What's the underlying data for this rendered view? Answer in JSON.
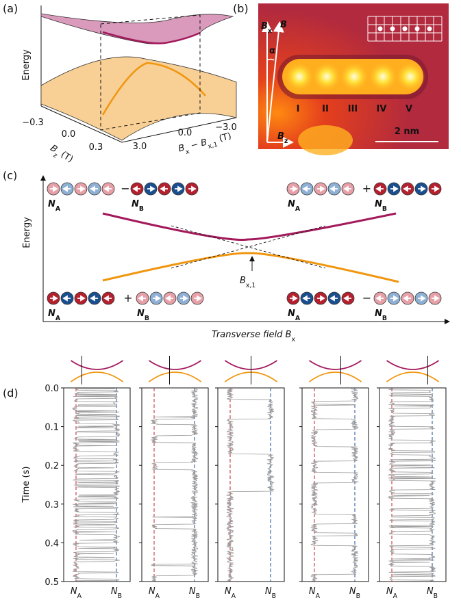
{
  "panels": {
    "a": {
      "label": "(a)",
      "z_label": "Energy",
      "bz_ticks": [
        "−0.3",
        "0.0",
        "0.3"
      ],
      "bz_label": {
        "main": "B",
        "sub": "z",
        "unit": " (T)"
      },
      "bx_ticks": [
        "3.0",
        "0.0",
        "−3.0"
      ],
      "bx_label": {
        "main": "B",
        "sub": "x",
        "mid": " − B",
        "sub2": "x,1",
        "unit": " (T)"
      }
    },
    "b": {
      "label": "(b)",
      "field_labels": [
        {
          "main": "B",
          "sub": "x"
        },
        {
          "main": "B"
        },
        {
          "main": "B",
          "sub": "z"
        }
      ],
      "angle": "α",
      "sites": [
        "I",
        "II",
        "III",
        "IV",
        "V"
      ],
      "scale": "2 nm"
    },
    "c": {
      "label": "(c)",
      "y_label": "Energy",
      "x_label": {
        "main": "Transverse field B",
        "sub": "x"
      },
      "crossing": {
        "main": "B",
        "sub": "x,1"
      },
      "states": [
        {
          "sign": "−",
          "left": {
            "main": "N",
            "sub": "A"
          },
          "right": {
            "main": "N",
            "sub": "B"
          }
        },
        {
          "sign": "+",
          "left": {
            "main": "N",
            "sub": "A"
          },
          "right": {
            "main": "N",
            "sub": "B"
          }
        },
        {
          "sign": "+",
          "left": {
            "main": "N",
            "sub": "A"
          },
          "right": {
            "main": "N",
            "sub": "B"
          }
        },
        {
          "sign": "−",
          "left": {
            "main": "N",
            "sub": "A"
          },
          "right": {
            "main": "N",
            "sub": "B"
          }
        }
      ]
    },
    "d": {
      "label": "(d)",
      "y_label": "Time (s)",
      "ylim": [
        0,
        0.5
      ],
      "yticks": [
        {
          "value": 0,
          "label": "0.0"
        },
        0.1,
        0.2,
        0.3,
        0.4,
        0.5
      ],
      "x_labels": [
        {
          "main": "N",
          "sub": "A"
        },
        {
          "main": "N",
          "sub": "B"
        }
      ]
    }
  }
}
